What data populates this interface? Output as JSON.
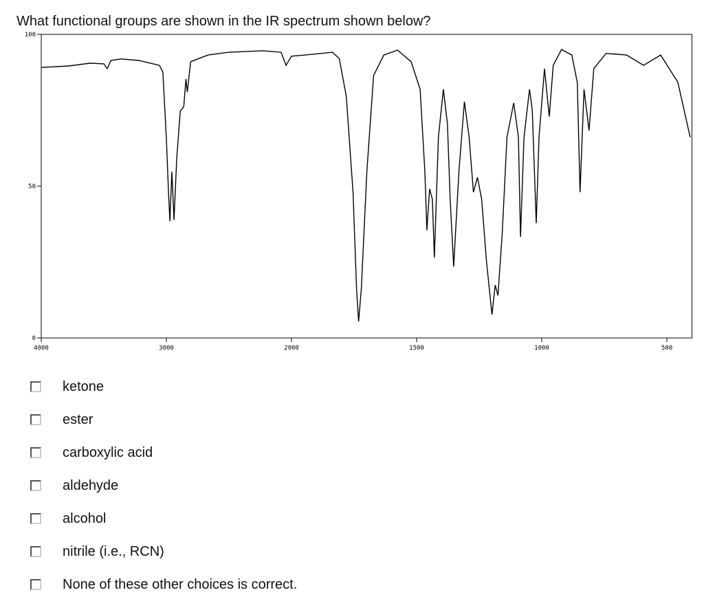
{
  "question": "What functional groups are shown in the IR spectrum shown below?",
  "chart_data": {
    "type": "line",
    "color": "#000000",
    "x": [
      4000,
      3778,
      3611,
      3500,
      3472,
      3444,
      3361,
      3222,
      3056,
      3028,
      3000,
      2983,
      2972,
      2956,
      2939,
      2917,
      2889,
      2861,
      2844,
      2833,
      2806,
      2667,
      2500,
      2222,
      2083,
      2044,
      2000,
      1945,
      1836,
      1809,
      1781,
      1754,
      1740,
      1732,
      1721,
      1699,
      1672,
      1631,
      1576,
      1522,
      1486,
      1467,
      1459,
      1448,
      1437,
      1429,
      1413,
      1393,
      1377,
      1366,
      1352,
      1331,
      1309,
      1290,
      1273,
      1257,
      1240,
      1221,
      1199,
      1186,
      1175,
      1158,
      1139,
      1112,
      1093,
      1085,
      1071,
      1049,
      1038,
      1022,
      1011,
      989,
      970,
      954,
      921,
      880,
      858,
      847,
      831,
      811,
      792,
      743,
      661,
      593,
      525,
      456,
      407
    ],
    "values": [
      89.1,
      89.6,
      90.5,
      90.3,
      88.7,
      91.4,
      91.9,
      91.4,
      89.8,
      87.6,
      65.6,
      48,
      38.5,
      54.8,
      38.9,
      59.3,
      74.7,
      76.2,
      85.3,
      81,
      91,
      93.2,
      94.1,
      94.6,
      94.1,
      89.8,
      92.8,
      93.2,
      94.1,
      92,
      79.6,
      48,
      16.3,
      5.4,
      16.3,
      54.8,
      86.4,
      93.2,
      94.8,
      91,
      81.9,
      54.8,
      35.5,
      49.1,
      45.7,
      26.5,
      66.1,
      81.9,
      70.6,
      45.7,
      23.5,
      54.8,
      77.8,
      66.1,
      48,
      52.9,
      45.7,
      25.3,
      7.7,
      17.4,
      14,
      34.4,
      66.1,
      77.4,
      66.1,
      33.3,
      66.1,
      81.9,
      75.1,
      37.8,
      66.1,
      88.7,
      72.9,
      89.8,
      95,
      93.2,
      84.2,
      48,
      81.9,
      68.3,
      88.7,
      93.7,
      93.2,
      89.8,
      93.2,
      84.2,
      66.1
    ],
    "xlim": [
      4000,
      400
    ],
    "xticks": [
      4000,
      3000,
      2000,
      1500,
      1000,
      500
    ],
    "ylim": [
      0,
      100
    ],
    "yticks": [
      0,
      50,
      100
    ]
  },
  "options": [
    "ketone",
    "ester",
    "carboxylic acid",
    "aldehyde",
    "alcohol",
    "nitrile (i.e., RCN)",
    "None of these other choices is correct."
  ]
}
